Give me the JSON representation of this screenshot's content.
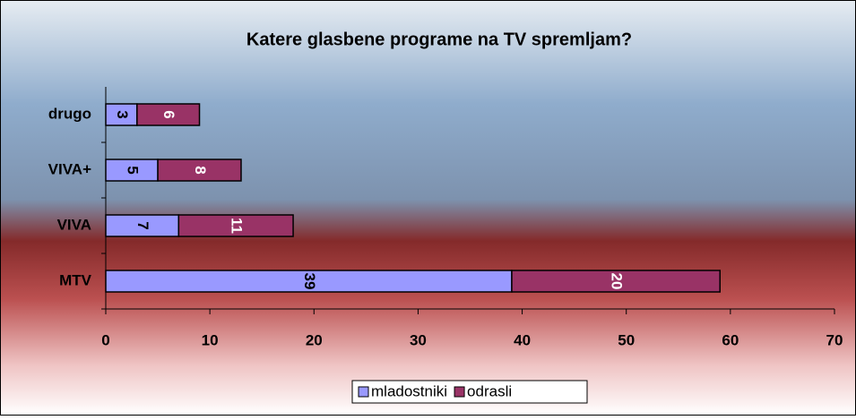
{
  "chart_data": {
    "type": "stacked-bar-horizontal",
    "title": "Katere glasbene programe na TV spremljam?",
    "categories": [
      "MTV",
      "VIVA",
      "VIVA+",
      "drugo"
    ],
    "series": [
      {
        "name": "mladostniki",
        "color": "#9999ff",
        "values": [
          39,
          7,
          5,
          3
        ]
      },
      {
        "name": "odrasli",
        "color": "#993366",
        "values": [
          20,
          11,
          8,
          6
        ]
      }
    ],
    "xlim": [
      0,
      70
    ],
    "xticks": [
      0,
      10,
      20,
      30,
      40,
      50,
      60,
      70
    ],
    "legend": "bottom"
  }
}
